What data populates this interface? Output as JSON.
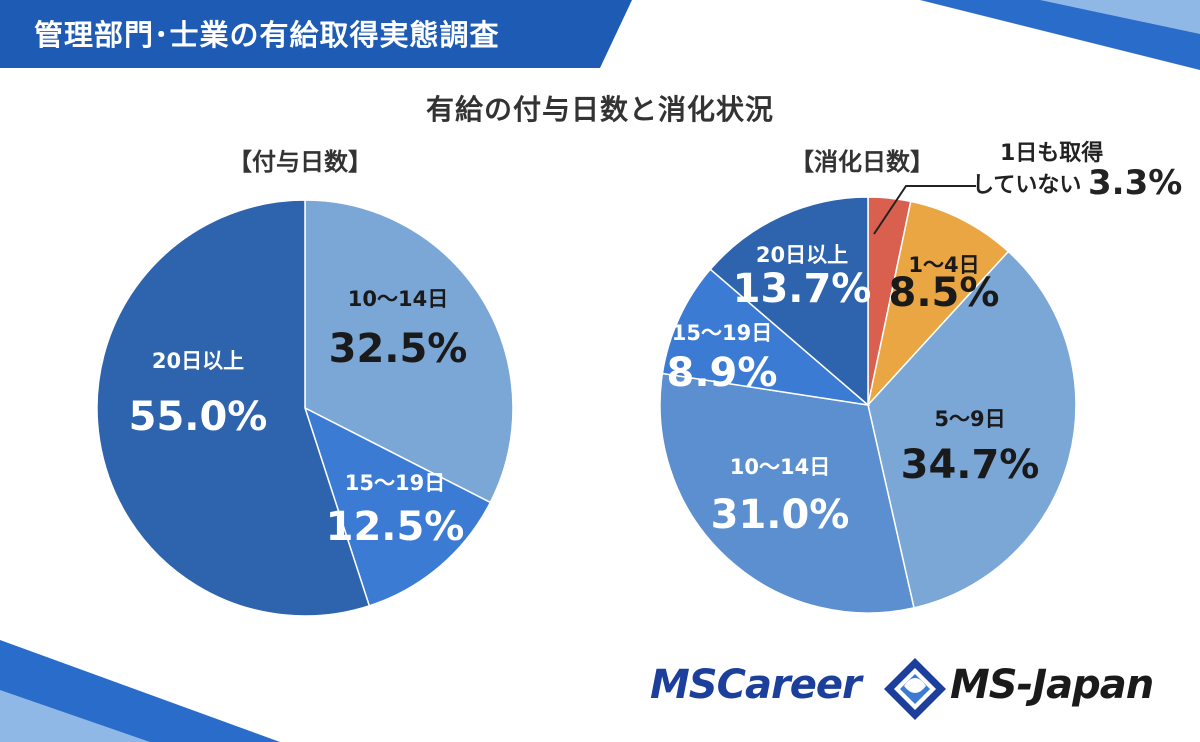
{
  "banner": {
    "title": "管理部門･士業の有給取得実態調査"
  },
  "main_title": "有給の付与日数と消化状況",
  "logos": {
    "career": "MSCareer",
    "japan": "MS-Japan"
  },
  "colors": {
    "banner_blue": "#1e5bb5",
    "dark_blue": "#2e63ad",
    "light_blue": "#7aa7d6",
    "mid_blue": "#3b7bd4",
    "steel_blue": "#5b8fd0",
    "red": "#d9604f",
    "orange": "#e9a642"
  },
  "chart_data": [
    {
      "type": "pie",
      "title": "【付与日数】",
      "slices": [
        {
          "label": "10～14日",
          "value": 32.5,
          "display": "32.5%",
          "color": "#7aa7d6",
          "text_color": "#1a1a1a"
        },
        {
          "label": "15～19日",
          "value": 12.5,
          "display": "12.5%",
          "color": "#3b7bd4",
          "text_color": "#ffffff"
        },
        {
          "label": "20日以上",
          "value": 55.0,
          "display": "55.0%",
          "color": "#2e63ad",
          "text_color": "#ffffff"
        }
      ]
    },
    {
      "type": "pie",
      "title": "【消化日数】",
      "slices": [
        {
          "label": "1日も取得していない",
          "value": 3.3,
          "display": "3.3%",
          "color": "#d9604f",
          "text_color": "#222222",
          "annotation": [
            "1日も取得",
            "していない"
          ]
        },
        {
          "label": "1～4日",
          "value": 8.5,
          "display": "8.5%",
          "color": "#e9a642",
          "text_color": "#1a1a1a"
        },
        {
          "label": "5～9日",
          "value": 34.7,
          "display": "34.7%",
          "color": "#7aa7d6",
          "text_color": "#1a1a1a"
        },
        {
          "label": "10～14日",
          "value": 31.0,
          "display": "31.0%",
          "color": "#5b8fd0",
          "text_color": "#ffffff"
        },
        {
          "label": "15～19日",
          "value": 8.9,
          "display": "8.9%",
          "color": "#3b7bd4",
          "text_color": "#ffffff"
        },
        {
          "label": "20日以上",
          "value": 13.7,
          "display": "13.7%",
          "color": "#2e63ad",
          "text_color": "#ffffff"
        }
      ]
    }
  ]
}
